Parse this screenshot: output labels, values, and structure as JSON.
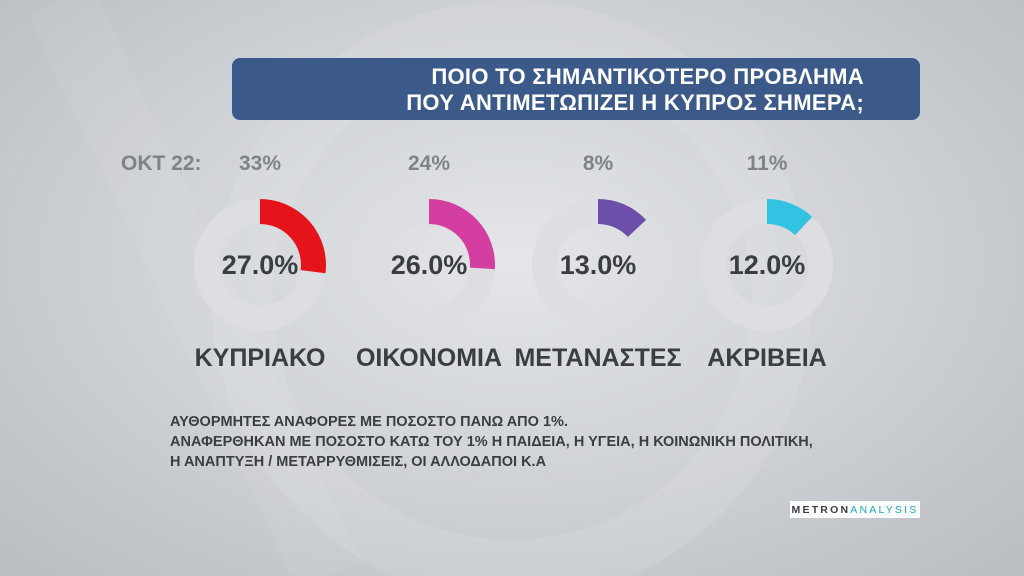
{
  "title": {
    "line1": "ΠΟΙΟ ΤΟ ΣΗΜΑΝΤΙΚΟΤΕΡΟ ΠΡΟΒΛΗΜΑ",
    "line2": "ΠΟΥ ΑΝΤΙΜΕΤΩΠΙΖΕΙ Η ΚΥΠΡΟΣ ΣΗΜΕΡΑ;"
  },
  "previous_label": "ΟΚΤ 22:",
  "chart_data": {
    "type": "pie",
    "subtype": "donut",
    "categories": [
      "ΚΥΠΡΙΑΚΟ",
      "ΟΙΚΟΝΟΜΙΑ",
      "ΜΕΤΑΝΑΣΤΕΣ",
      "ΑΚΡΙΒΕΙΑ"
    ],
    "series": [
      {
        "values": [
          27.0,
          26.0,
          13.0,
          12.0
        ]
      },
      {
        "name": "ΟΚΤ 22",
        "values": [
          33,
          24,
          8,
          11
        ]
      }
    ],
    "value_labels": [
      "27.0%",
      "26.0%",
      "13.0%",
      "12.0%"
    ],
    "previous_labels": [
      "33%",
      "24%",
      "8%",
      "11%"
    ],
    "colors": [
      "#e5141b",
      "#d43ea0",
      "#6c4fa8",
      "#33c3e2"
    ],
    "track_color": "#dcdee1"
  },
  "notes": [
    "ΑΥΘΟΡΜΗΤΕΣ ΑΝΑΦΟΡΕΣ ΜΕ ΠΟΣΟΣΤΟ ΠΑΝΩ ΑΠΟ 1%.",
    "ΑΝΑΦΕΡΘΗΚΑΝ ΜΕ ΠΟΣΟΣΤΟ ΚΑΤΩ ΤΟΥ 1% Η ΠΑΙΔΕΙΑ, Η ΥΓΕΙΑ, Η ΚΟΙΝΩΝΙΚΗ ΠΟΛΙΤΙΚΗ,",
    "Η ΑΝΑΠΤΥΞΗ / ΜΕΤΑΡΡΥΘΜΙΣΕΙΣ, ΟΙ ΑΛΛΟΔΑΠΟΙ Κ.Α"
  ],
  "logo": {
    "part1": "METRON",
    "part2": "ANALYSIS"
  }
}
